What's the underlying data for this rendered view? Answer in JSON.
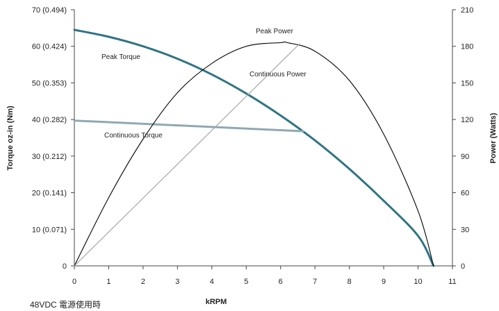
{
  "chart_data": {
    "type": "line",
    "caption": "48VDC 電源使用時",
    "xlabel": "kRPM",
    "ylabel": "Torque oz-in (Nm)",
    "y2label": "Power (Watts)",
    "xlim": [
      0,
      11
    ],
    "ylim": [
      0,
      70
    ],
    "y2lim": [
      0,
      210
    ],
    "grid": false,
    "legend": "none",
    "x_ticks": [
      "0",
      "1",
      "2",
      "3",
      "4",
      "5",
      "6",
      "7",
      "8",
      "9",
      "10",
      "11"
    ],
    "y_ticks": [
      "0",
      "10 (0.071)",
      "20 (0.141)",
      "30 (0.212)",
      "40 (0.282)",
      "50 (0.353)",
      "60 (0.424)",
      "70 (0.494)"
    ],
    "y2_ticks": [
      "0",
      "30",
      "60",
      "90",
      "120",
      "150",
      "180",
      "210"
    ],
    "series": [
      {
        "name": "Peak Torque",
        "axis": "left",
        "color": "#2e7484",
        "x": [
          0,
          1,
          2,
          3,
          4,
          5,
          6,
          7,
          8,
          9,
          10,
          10.45
        ],
        "y": [
          64.5,
          62.6,
          60.0,
          56.6,
          52.3,
          47.1,
          41.1,
          34.3,
          26.5,
          17.8,
          8.2,
          0
        ]
      },
      {
        "name": "Continuous Torque",
        "axis": "left",
        "color": "#8fa8b3",
        "x": [
          0,
          6.65
        ],
        "y": [
          39.7,
          36.8
        ]
      },
      {
        "name": "Peak Power",
        "axis": "right",
        "color": "#111111",
        "x": [
          0,
          1,
          2,
          3,
          4,
          5,
          6,
          6.2,
          7,
          8,
          9,
          10,
          10.45
        ],
        "y": [
          0,
          56,
          104,
          142,
          166,
          180,
          183,
          183,
          176,
          152,
          108,
          45,
          0
        ]
      },
      {
        "name": "Continuous Power",
        "axis": "right",
        "color": "#a8a8a8",
        "x": [
          0,
          6.55
        ],
        "y": [
          0,
          182
        ]
      }
    ],
    "annotations": [
      "Peak Torque",
      "Continuous Torque",
      "Peak Power",
      "Continuous Power"
    ]
  }
}
